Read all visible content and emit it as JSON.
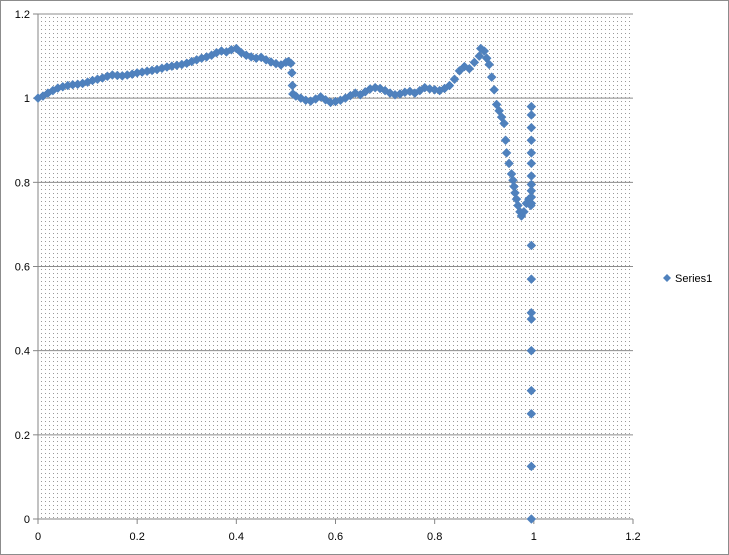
{
  "chart_data": {
    "type": "scatter",
    "title": "",
    "xlabel": "",
    "ylabel": "",
    "xlim": [
      0,
      1.2
    ],
    "ylim": [
      0,
      1.2
    ],
    "x_ticks": [
      0,
      0.2,
      0.4,
      0.6,
      0.8,
      1,
      1.2
    ],
    "x_tick_labels": [
      "0",
      "0.2",
      "0.4",
      "0.6",
      "0.8",
      "1",
      "1.2"
    ],
    "y_ticks": [
      0,
      0.2,
      0.4,
      0.6,
      0.8,
      1,
      1.2
    ],
    "y_tick_labels": [
      "0",
      "0.2",
      "0.4",
      "0.6",
      "0.8",
      "1",
      "1.2"
    ],
    "grid": "horizontal major gridlines",
    "plot_background": "dotted pattern",
    "legend_position": "right",
    "marker": "diamond",
    "series_color": "#4F81BD",
    "series": [
      {
        "name": "Series1",
        "points": [
          [
            0,
            1.0
          ],
          [
            0.01,
            1.005
          ],
          [
            0.02,
            1.012
          ],
          [
            0.03,
            1.018
          ],
          [
            0.04,
            1.024
          ],
          [
            0.05,
            1.027
          ],
          [
            0.06,
            1.03
          ],
          [
            0.07,
            1.032
          ],
          [
            0.08,
            1.033
          ],
          [
            0.09,
            1.035
          ],
          [
            0.1,
            1.038
          ],
          [
            0.11,
            1.042
          ],
          [
            0.12,
            1.045
          ],
          [
            0.13,
            1.048
          ],
          [
            0.14,
            1.052
          ],
          [
            0.15,
            1.055
          ],
          [
            0.16,
            1.054
          ],
          [
            0.17,
            1.053
          ],
          [
            0.18,
            1.055
          ],
          [
            0.19,
            1.057
          ],
          [
            0.2,
            1.06
          ],
          [
            0.21,
            1.062
          ],
          [
            0.22,
            1.064
          ],
          [
            0.23,
            1.066
          ],
          [
            0.24,
            1.068
          ],
          [
            0.25,
            1.071
          ],
          [
            0.26,
            1.074
          ],
          [
            0.27,
            1.076
          ],
          [
            0.28,
            1.078
          ],
          [
            0.29,
            1.08
          ],
          [
            0.3,
            1.083
          ],
          [
            0.31,
            1.087
          ],
          [
            0.32,
            1.091
          ],
          [
            0.33,
            1.095
          ],
          [
            0.34,
            1.098
          ],
          [
            0.35,
            1.102
          ],
          [
            0.36,
            1.108
          ],
          [
            0.37,
            1.112
          ],
          [
            0.38,
            1.11
          ],
          [
            0.39,
            1.115
          ],
          [
            0.4,
            1.118
          ],
          [
            0.41,
            1.108
          ],
          [
            0.42,
            1.102
          ],
          [
            0.43,
            1.098
          ],
          [
            0.44,
            1.095
          ],
          [
            0.45,
            1.097
          ],
          [
            0.46,
            1.091
          ],
          [
            0.47,
            1.086
          ],
          [
            0.48,
            1.082
          ],
          [
            0.49,
            1.079
          ],
          [
            0.5,
            1.085
          ],
          [
            0.505,
            1.087
          ],
          [
            0.51,
            1.083
          ],
          [
            0.512,
            1.06
          ],
          [
            0.513,
            1.03
          ],
          [
            0.514,
            1.01
          ],
          [
            0.52,
            1.005
          ],
          [
            0.53,
            1.0
          ],
          [
            0.54,
            0.995
          ],
          [
            0.55,
            0.993
          ],
          [
            0.56,
            0.998
          ],
          [
            0.57,
            1.003
          ],
          [
            0.58,
            0.996
          ],
          [
            0.59,
            0.99
          ],
          [
            0.6,
            0.992
          ],
          [
            0.61,
            0.995
          ],
          [
            0.62,
            1.0
          ],
          [
            0.63,
            1.006
          ],
          [
            0.64,
            1.012
          ],
          [
            0.65,
            1.008
          ],
          [
            0.66,
            1.015
          ],
          [
            0.67,
            1.022
          ],
          [
            0.68,
            1.025
          ],
          [
            0.69,
            1.023
          ],
          [
            0.7,
            1.018
          ],
          [
            0.71,
            1.012
          ],
          [
            0.72,
            1.008
          ],
          [
            0.73,
            1.01
          ],
          [
            0.74,
            1.014
          ],
          [
            0.75,
            1.016
          ],
          [
            0.76,
            1.012
          ],
          [
            0.77,
            1.018
          ],
          [
            0.78,
            1.025
          ],
          [
            0.79,
            1.022
          ],
          [
            0.8,
            1.02
          ],
          [
            0.81,
            1.018
          ],
          [
            0.82,
            1.023
          ],
          [
            0.83,
            1.03
          ],
          [
            0.84,
            1.045
          ],
          [
            0.85,
            1.065
          ],
          [
            0.86,
            1.075
          ],
          [
            0.87,
            1.07
          ],
          [
            0.88,
            1.085
          ],
          [
            0.89,
            1.1
          ],
          [
            0.893,
            1.118
          ],
          [
            0.9,
            1.112
          ],
          [
            0.905,
            1.095
          ],
          [
            0.91,
            1.08
          ],
          [
            0.915,
            1.05
          ],
          [
            0.92,
            1.02
          ],
          [
            0.925,
            0.985
          ],
          [
            0.93,
            0.97
          ],
          [
            0.935,
            0.955
          ],
          [
            0.94,
            0.94
          ],
          [
            0.943,
            0.9
          ],
          [
            0.945,
            0.87
          ],
          [
            0.95,
            0.845
          ],
          [
            0.955,
            0.82
          ],
          [
            0.958,
            0.805
          ],
          [
            0.96,
            0.79
          ],
          [
            0.962,
            0.775
          ],
          [
            0.965,
            0.76
          ],
          [
            0.968,
            0.745
          ],
          [
            0.972,
            0.73
          ],
          [
            0.975,
            0.72
          ],
          [
            0.98,
            0.73
          ],
          [
            0.985,
            0.75
          ],
          [
            0.99,
            0.76
          ],
          [
            0.994,
            0.745
          ],
          [
            0.995,
            0.98
          ],
          [
            0.995,
            0.96
          ],
          [
            0.995,
            0.93
          ],
          [
            0.995,
            0.9
          ],
          [
            0.995,
            0.87
          ],
          [
            0.995,
            0.845
          ],
          [
            0.995,
            0.815
          ],
          [
            0.995,
            0.795
          ],
          [
            0.995,
            0.78
          ],
          [
            0.995,
            0.765
          ],
          [
            0.995,
            0.75
          ],
          [
            0.995,
            0.65
          ],
          [
            0.995,
            0.57
          ],
          [
            0.995,
            0.49
          ],
          [
            0.995,
            0.475
          ],
          [
            0.995,
            0.4
          ],
          [
            0.995,
            0.305
          ],
          [
            0.995,
            0.25
          ],
          [
            0.995,
            0.125
          ],
          [
            0.995,
            0.0
          ]
        ]
      }
    ]
  }
}
